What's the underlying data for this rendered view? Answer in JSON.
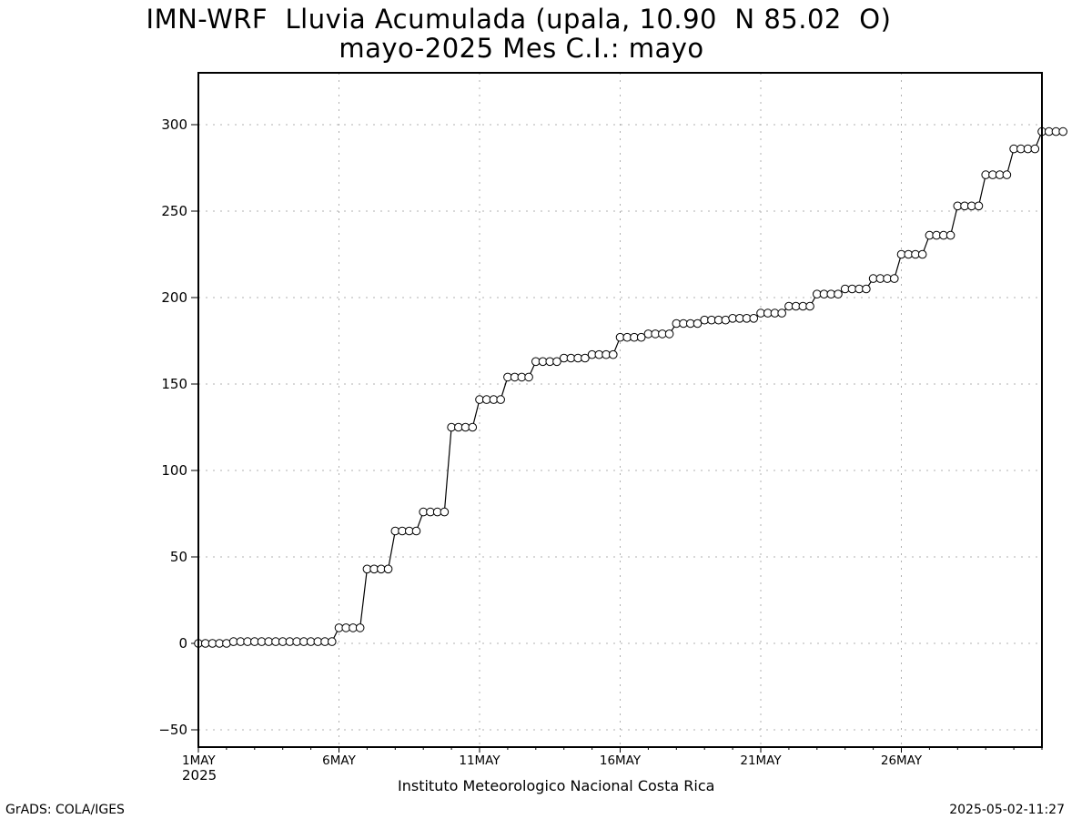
{
  "title": "IMN-WRF  Lluvia Acumulada (upala, 10.90  N 85.02  O)",
  "subtitle": "mayo-2025 Mes C.I.: mayo",
  "footer": "Instituto Meteorologico Nacional Costa Rica",
  "credit": "GrADS: COLA/IGES",
  "timestamp": "2025-05-02-11:27",
  "colors": {
    "line": "#000000",
    "marker_fill": "#ffffff",
    "grid": "#b0b0b0",
    "background": "#ffffff"
  },
  "chart_data": {
    "type": "line",
    "title": "IMN-WRF  Lluvia Acumulada (upala, 10.90  N 85.02  O)",
    "subtitle": "mayo-2025 Mes C.I.: mayo",
    "xlabel": "",
    "ylabel": "",
    "x_start_label": "1MAY 2025",
    "x_range_days": [
      1,
      31
    ],
    "ylim": [
      -60,
      330
    ],
    "yticks": [
      -50,
      0,
      50,
      100,
      150,
      200,
      250,
      300
    ],
    "xticks": [
      {
        "day": 1,
        "label": "1MAY",
        "sublabel": "2025"
      },
      {
        "day": 6,
        "label": "6MAY",
        "sublabel": ""
      },
      {
        "day": 11,
        "label": "11MAY",
        "sublabel": ""
      },
      {
        "day": 16,
        "label": "16MAY",
        "sublabel": ""
      },
      {
        "day": 21,
        "label": "21MAY",
        "sublabel": ""
      },
      {
        "day": 26,
        "label": "26MAY",
        "sublabel": ""
      }
    ],
    "grid": true,
    "series": [
      {
        "marker": "circle",
        "step_hours": 6,
        "y": [
          0,
          0,
          0,
          0,
          0,
          1,
          1,
          1,
          1,
          1,
          1,
          1,
          1,
          1,
          1,
          1,
          1,
          1,
          1,
          1,
          9,
          9,
          9,
          9,
          43,
          43,
          43,
          43,
          65,
          65,
          65,
          65,
          76,
          76,
          76,
          76,
          125,
          125,
          125,
          125,
          141,
          141,
          141,
          141,
          154,
          154,
          154,
          154,
          163,
          163,
          163,
          163,
          165,
          165,
          165,
          165,
          167,
          167,
          167,
          167,
          177,
          177,
          177,
          177,
          179,
          179,
          179,
          179,
          185,
          185,
          185,
          185,
          187,
          187,
          187,
          187,
          188,
          188,
          188,
          188,
          191,
          191,
          191,
          191,
          195,
          195,
          195,
          195,
          202,
          202,
          202,
          202,
          205,
          205,
          205,
          205,
          211,
          211,
          211,
          211,
          225,
          225,
          225,
          225,
          236,
          236,
          236,
          236,
          253,
          253,
          253,
          253,
          271,
          271,
          271,
          271,
          286,
          286,
          286,
          286,
          296,
          296,
          296,
          296
        ]
      }
    ]
  }
}
